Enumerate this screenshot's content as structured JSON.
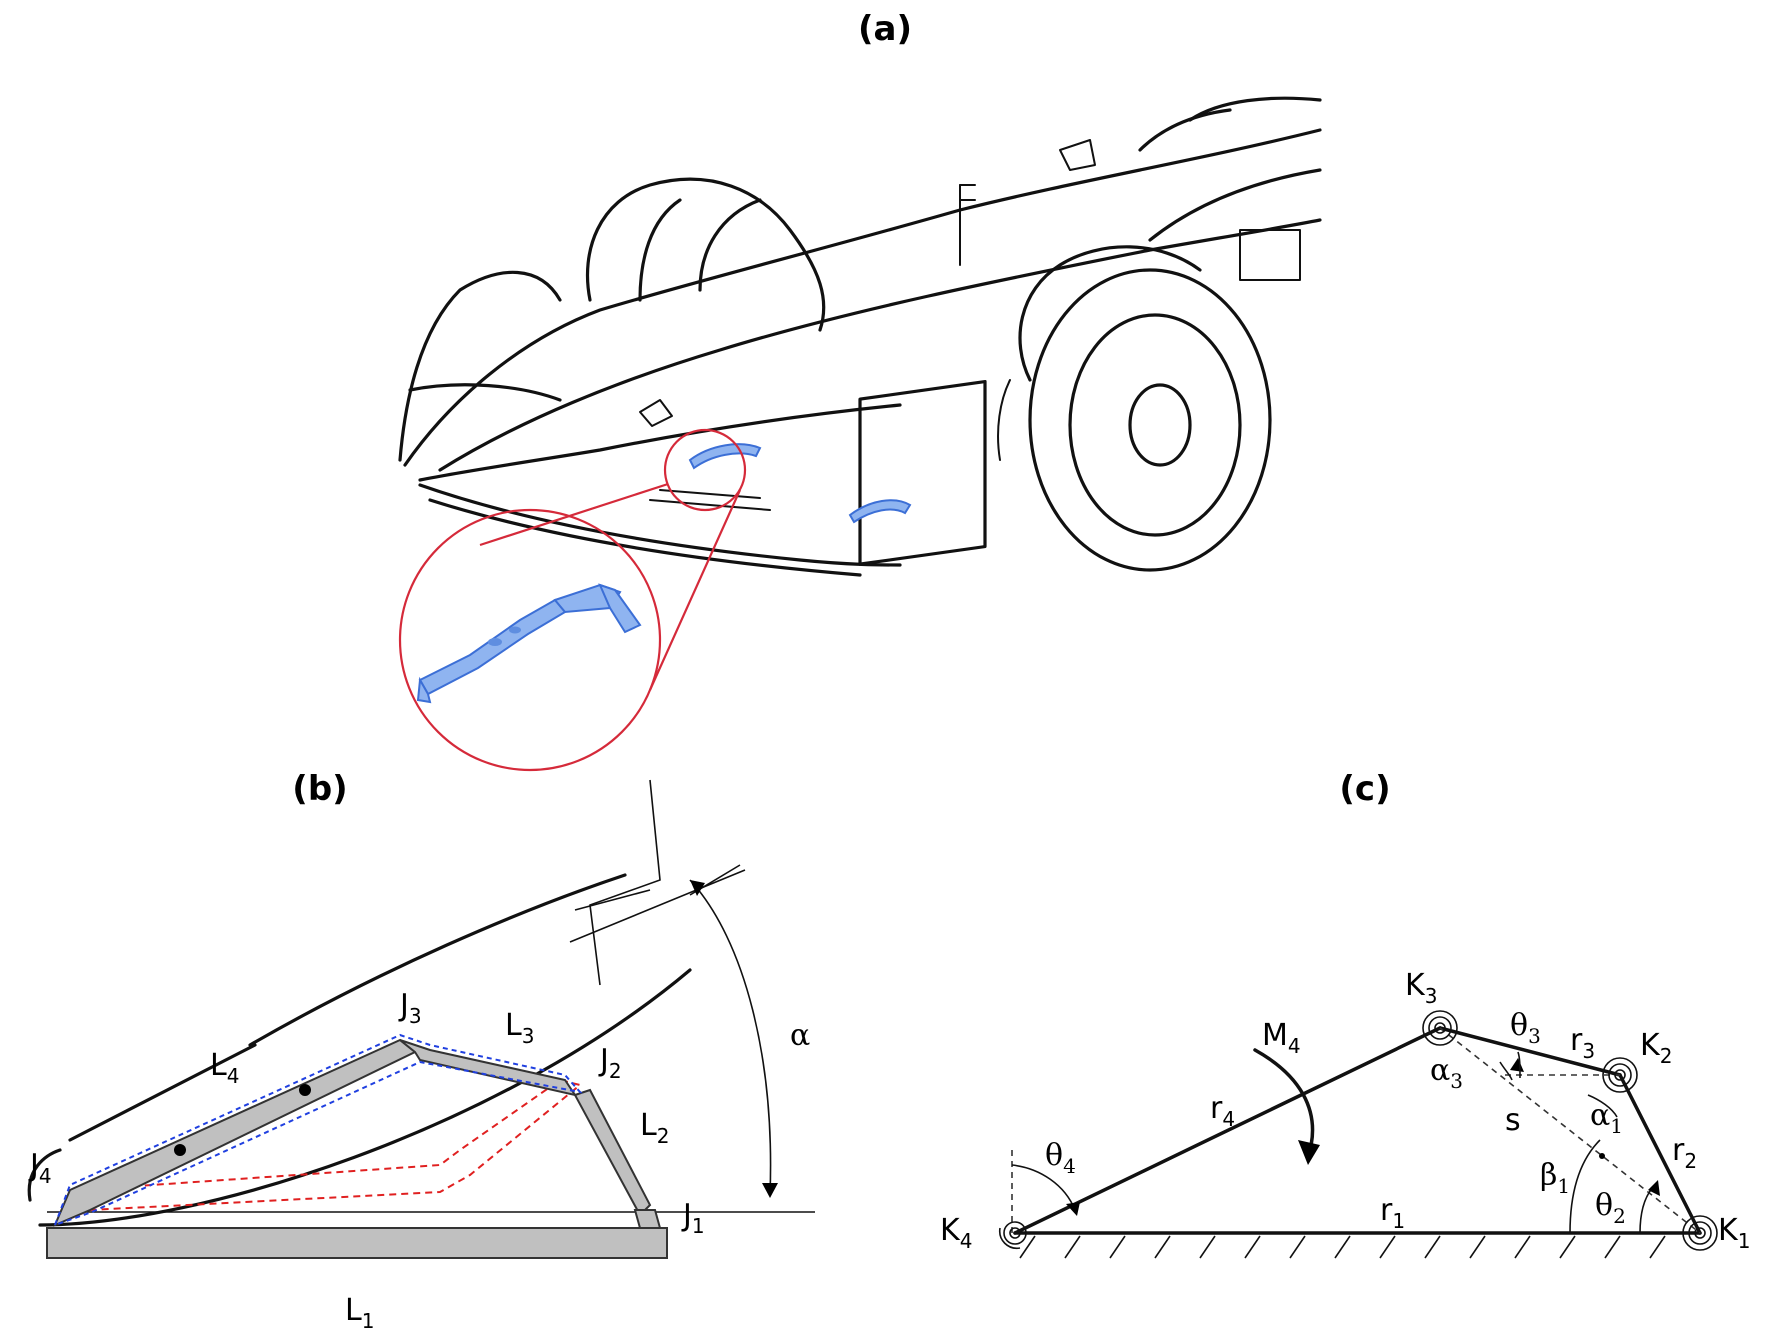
{
  "panels": {
    "a": {
      "label": "(a)"
    },
    "b": {
      "label": "(b)",
      "labels": {
        "J1": {
          "main": "J",
          "sub": "1"
        },
        "J2": {
          "main": "J",
          "sub": "2"
        },
        "J3": {
          "main": "J",
          "sub": "3"
        },
        "J4": {
          "main": "J",
          "sub": "4"
        },
        "L1": {
          "main": "L",
          "sub": "1"
        },
        "L2": {
          "main": "L",
          "sub": "2"
        },
        "L3": {
          "main": "L",
          "sub": "3"
        },
        "L4": {
          "main": "L",
          "sub": "4"
        },
        "alpha": "α"
      }
    },
    "c": {
      "label": "(c)",
      "labels": {
        "K1": {
          "main": "K",
          "sub": "1"
        },
        "K2": {
          "main": "K",
          "sub": "2"
        },
        "K3": {
          "main": "K",
          "sub": "3"
        },
        "K4": {
          "main": "K",
          "sub": "4"
        },
        "M4": {
          "main": "M",
          "sub": "4"
        },
        "r1": {
          "main": "r",
          "sub": "1"
        },
        "r2": {
          "main": "r",
          "sub": "2"
        },
        "r3": {
          "main": "r",
          "sub": "3"
        },
        "r4": {
          "main": "r",
          "sub": "4"
        },
        "s": "s",
        "theta2": {
          "main": "θ",
          "sub": "2"
        },
        "theta3": {
          "main": "θ",
          "sub": "3"
        },
        "theta4": {
          "main": "θ",
          "sub": "4"
        },
        "alpha1": {
          "main": "α",
          "sub": "1"
        },
        "alpha3": {
          "main": "α",
          "sub": "3"
        },
        "beta1": {
          "main": "β",
          "sub": "1"
        }
      }
    }
  },
  "colors": {
    "highlight_part": "#8fb4f0",
    "zoom_circle": "#d52a3a",
    "deformed_dashed": "#e02020",
    "undeformed_dashed": "#2040e0",
    "link_fill": "#c0c0c0"
  }
}
